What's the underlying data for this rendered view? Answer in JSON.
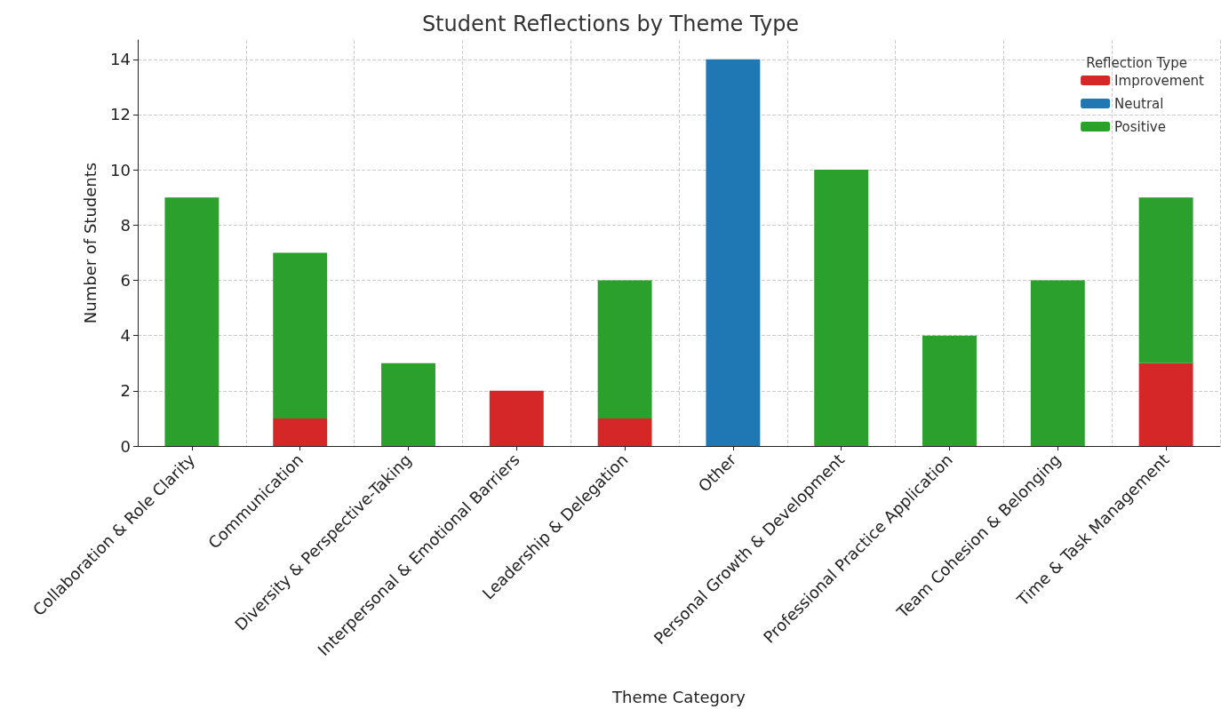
{
  "chart_data": {
    "type": "bar",
    "title": "Student Reflections by Theme Type",
    "xlabel": "Theme Category",
    "ylabel": "Number of Students",
    "legend_title": "Reflection Type",
    "categories": [
      "Collaboration & Role Clarity",
      "Communication",
      "Diversity & Perspective-Taking",
      "Interpersonal & Emotional Barriers",
      "Leadership & Delegation",
      "Other",
      "Personal Growth & Development",
      "Professional Practice Application",
      "Team Cohesion & Belonging",
      "Time & Task Management"
    ],
    "series": [
      {
        "name": "Improvement",
        "color": "#d62728",
        "values": [
          0,
          1,
          0,
          2,
          1,
          0,
          0,
          0,
          0,
          3
        ]
      },
      {
        "name": "Neutral",
        "color": "#1f77b4",
        "values": [
          0,
          0,
          0,
          0,
          0,
          14,
          0,
          0,
          0,
          0
        ]
      },
      {
        "name": "Positive",
        "color": "#2ca02c",
        "values": [
          9,
          6,
          3,
          0,
          5,
          0,
          10,
          4,
          6,
          6
        ]
      }
    ],
    "stacked": true,
    "ylim": [
      0,
      14.7
    ],
    "yticks": [
      0,
      2,
      4,
      6,
      8,
      10,
      12,
      14
    ],
    "grid": true,
    "legend": "top right"
  }
}
